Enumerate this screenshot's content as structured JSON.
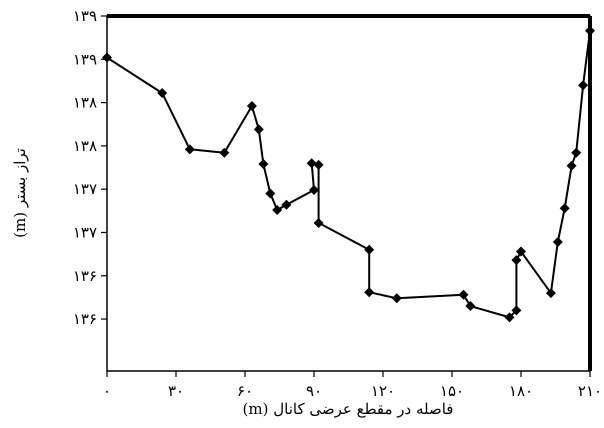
{
  "chart_data": {
    "type": "line",
    "title": "",
    "xlabel": "فاصله در مقطع عرضی کانال (m)",
    "ylabel": "تراز بستر (m)",
    "xlim": [
      0,
      210
    ],
    "ylim": [
      135.2,
      139.3
    ],
    "grid": false,
    "legend": "none",
    "x_ticks": [
      {
        "value": 0,
        "label": "۰"
      },
      {
        "value": 30,
        "label": "۳۰"
      },
      {
        "value": 60,
        "label": "۶۰"
      },
      {
        "value": 90,
        "label": "۹۰"
      },
      {
        "value": 120,
        "label": "۱۲۰"
      },
      {
        "value": 150,
        "label": "۱۵۰"
      },
      {
        "value": 180,
        "label": "۱۸۰"
      },
      {
        "value": 210,
        "label": "۲۱۰"
      }
    ],
    "y_ticks": [
      {
        "value": 139.3,
        "label": "۱۳۹"
      },
      {
        "value": 138.8,
        "label": "۱۳۹"
      },
      {
        "value": 138.3,
        "label": "۱۳۸"
      },
      {
        "value": 137.8,
        "label": "۱۳۸"
      },
      {
        "value": 137.3,
        "label": "۱۳۷"
      },
      {
        "value": 136.8,
        "label": "۱۳۷"
      },
      {
        "value": 136.3,
        "label": "۱۳۶"
      },
      {
        "value": 135.8,
        "label": "۱۳۶"
      }
    ],
    "series": [
      {
        "name": "",
        "color": "#000000",
        "marker": "diamond",
        "points": [
          [
            0,
            138.82
          ],
          [
            24,
            138.41
          ],
          [
            36,
            137.76
          ],
          [
            51,
            137.72
          ],
          [
            63,
            138.26
          ],
          [
            66,
            137.99
          ],
          [
            68,
            137.59
          ],
          [
            71,
            137.25
          ],
          [
            74,
            137.06
          ],
          [
            78,
            137.12
          ],
          [
            90,
            137.29
          ],
          [
            89,
            137.6
          ],
          [
            92,
            137.58
          ],
          [
            92,
            136.91
          ],
          [
            114,
            136.6
          ],
          [
            114,
            136.11
          ],
          [
            126,
            136.04
          ],
          [
            155,
            136.08
          ],
          [
            158,
            135.95
          ],
          [
            175,
            135.82
          ],
          [
            178,
            135.9
          ],
          [
            178,
            136.48
          ],
          [
            180,
            136.58
          ],
          [
            193,
            136.1
          ],
          [
            196,
            136.69
          ],
          [
            199,
            137.08
          ],
          [
            202,
            137.57
          ],
          [
            204,
            137.72
          ],
          [
            207,
            138.5
          ],
          [
            210,
            139.13
          ]
        ]
      }
    ]
  }
}
